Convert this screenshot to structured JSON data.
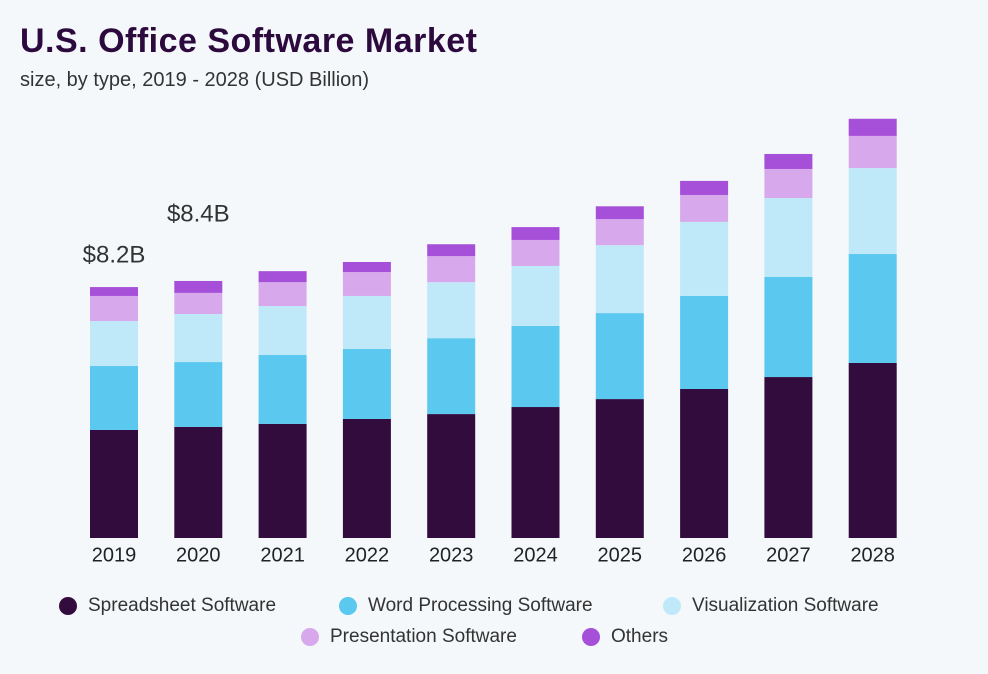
{
  "chart_data": {
    "type": "stacked-bar",
    "title": "U.S. Office Software Market",
    "subtitle": "size, by type, 2019 - 2028 (USD Billion)",
    "categories": [
      "2019",
      "2020",
      "2021",
      "2022",
      "2023",
      "2024",
      "2025",
      "2026",
      "2027",
      "2028"
    ],
    "series": [
      {
        "name": "Spreadsheet Software",
        "color": "#330c3e",
        "values": [
          3.53,
          3.63,
          3.73,
          3.89,
          4.05,
          4.28,
          4.54,
          4.87,
          5.26,
          5.72
        ]
      },
      {
        "name": "Word Processing Software",
        "color": "#5bc8f0",
        "values": [
          2.09,
          2.12,
          2.25,
          2.29,
          2.48,
          2.65,
          2.81,
          3.04,
          3.27,
          3.56
        ]
      },
      {
        "name": "Visualization Software",
        "color": "#bfe9f8",
        "values": [
          1.47,
          1.57,
          1.6,
          1.73,
          1.83,
          1.96,
          2.22,
          2.42,
          2.58,
          2.81
        ]
      },
      {
        "name": "Presentation Software",
        "color": "#d7a9ec",
        "values": [
          0.82,
          0.69,
          0.78,
          0.78,
          0.85,
          0.85,
          0.85,
          0.88,
          0.95,
          1.05
        ]
      },
      {
        "name": "Others",
        "color": "#a64fd8",
        "values": [
          0.29,
          0.39,
          0.36,
          0.33,
          0.39,
          0.42,
          0.42,
          0.46,
          0.49,
          0.56
        ]
      }
    ],
    "annotations": [
      {
        "category": "2019",
        "value": 8.2,
        "label": "$8.2B"
      },
      {
        "category": "2020",
        "value": 8.4,
        "label": "$8.4B"
      }
    ],
    "legend": "bottom"
  }
}
